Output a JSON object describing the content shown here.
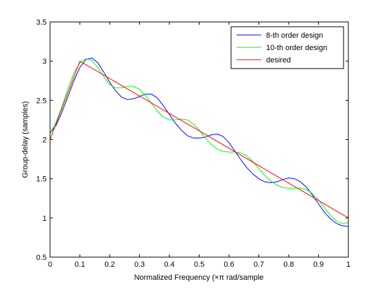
{
  "chart_data": {
    "type": "line",
    "title": "",
    "xlabel": "Normalized Frequency (×π rad/sample",
    "ylabel": "Group-delay (samples)",
    "xlim": [
      0,
      1
    ],
    "ylim": [
      0.5,
      3.5
    ],
    "x_ticks": [
      0,
      0.1,
      0.2,
      0.3,
      0.4,
      0.5,
      0.6,
      0.7,
      0.8,
      0.9,
      1
    ],
    "x_tick_labels": [
      "0",
      "0.1",
      "0.2",
      "0.3",
      "0.4",
      "0.5",
      "0.6",
      "0.7",
      "0.8",
      "0.9",
      "1"
    ],
    "y_ticks": [
      0.5,
      1,
      1.5,
      2,
      2.5,
      3,
      3.5
    ],
    "y_tick_labels": [
      "0.5",
      "1",
      "1.5",
      "2",
      "2.5",
      "3",
      "3.5"
    ],
    "grid": false,
    "legend_position": "top-right",
    "series": [
      {
        "name": "8-th order design",
        "color": "#0000ff",
        "x": [
          0,
          0.02,
          0.04,
          0.06,
          0.08,
          0.1,
          0.12,
          0.14,
          0.16,
          0.18,
          0.2,
          0.22,
          0.24,
          0.26,
          0.28,
          0.3,
          0.32,
          0.34,
          0.36,
          0.38,
          0.4,
          0.42,
          0.44,
          0.46,
          0.48,
          0.5,
          0.52,
          0.54,
          0.56,
          0.58,
          0.6,
          0.62,
          0.64,
          0.66,
          0.68,
          0.7,
          0.72,
          0.74,
          0.76,
          0.78,
          0.8,
          0.82,
          0.84,
          0.86,
          0.88,
          0.9,
          0.92,
          0.94,
          0.96,
          0.98,
          1.0
        ],
        "y": [
          2.08,
          2.18,
          2.35,
          2.55,
          2.75,
          2.92,
          3.02,
          3.04,
          2.98,
          2.86,
          2.73,
          2.62,
          2.54,
          2.51,
          2.52,
          2.55,
          2.58,
          2.58,
          2.53,
          2.43,
          2.32,
          2.21,
          2.12,
          2.05,
          2.02,
          2.02,
          2.03,
          2.06,
          2.07,
          2.04,
          1.96,
          1.85,
          1.74,
          1.64,
          1.56,
          1.5,
          1.46,
          1.45,
          1.46,
          1.49,
          1.51,
          1.5,
          1.46,
          1.39,
          1.29,
          1.18,
          1.07,
          0.99,
          0.93,
          0.9,
          0.89
        ]
      },
      {
        "name": "10-th order design",
        "color": "#00ff00",
        "x": [
          0,
          0.02,
          0.04,
          0.06,
          0.08,
          0.1,
          0.12,
          0.14,
          0.16,
          0.18,
          0.2,
          0.22,
          0.24,
          0.26,
          0.28,
          0.3,
          0.32,
          0.34,
          0.36,
          0.38,
          0.4,
          0.42,
          0.44,
          0.46,
          0.48,
          0.5,
          0.52,
          0.54,
          0.56,
          0.58,
          0.6,
          0.62,
          0.64,
          0.66,
          0.68,
          0.7,
          0.72,
          0.74,
          0.76,
          0.78,
          0.8,
          0.82,
          0.84,
          0.86,
          0.88,
          0.9,
          0.92,
          0.94,
          0.96,
          0.98,
          1.0
        ],
        "y": [
          2.08,
          2.22,
          2.42,
          2.65,
          2.85,
          2.98,
          3.03,
          3.01,
          2.92,
          2.8,
          2.7,
          2.66,
          2.66,
          2.68,
          2.68,
          2.64,
          2.56,
          2.46,
          2.36,
          2.29,
          2.25,
          2.25,
          2.26,
          2.25,
          2.2,
          2.12,
          2.02,
          1.94,
          1.88,
          1.85,
          1.84,
          1.84,
          1.83,
          1.79,
          1.72,
          1.63,
          1.54,
          1.47,
          1.42,
          1.39,
          1.38,
          1.38,
          1.38,
          1.36,
          1.31,
          1.23,
          1.13,
          1.03,
          0.96,
          0.93,
          0.94
        ]
      },
      {
        "name": "desired",
        "color": "#ff0000",
        "x": [
          0,
          0.1,
          1.0
        ],
        "y": [
          2.0,
          3.0,
          1.0
        ]
      }
    ]
  }
}
